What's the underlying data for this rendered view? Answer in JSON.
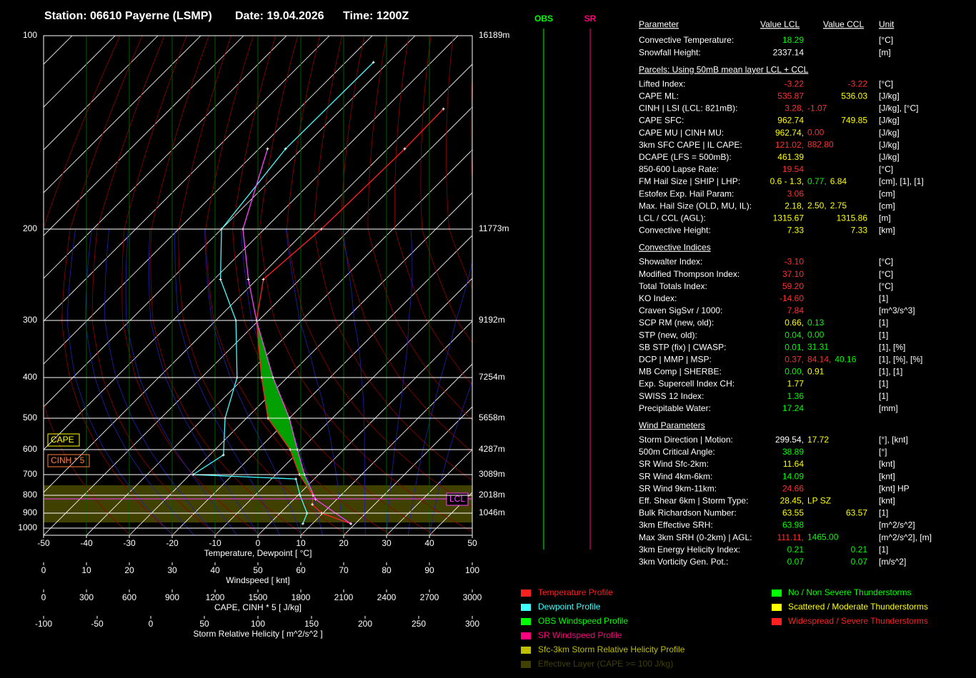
{
  "header": {
    "station": "Station: 06610 Payerne (LSMP)",
    "date": "Date: 19.04.2026",
    "time": "Time: 1200Z"
  },
  "chart_data": {
    "type": "skewt",
    "yticks": [
      100,
      200,
      300,
      400,
      500,
      600,
      700,
      800,
      900,
      1000
    ],
    "height_labels": [
      "16189m",
      "11773m",
      "9192m",
      "7254m",
      "5658m",
      "4287m",
      "3089m",
      "2018m",
      "1046m"
    ],
    "xlim": [
      -50,
      50
    ],
    "xticks": [
      -50,
      -40,
      -30,
      -20,
      -10,
      0,
      10,
      20,
      30,
      40,
      50
    ],
    "xlabel": "Temperature, Dewpoint [ °C]",
    "scales": [
      {
        "label": "Windspeed [ knt]",
        "xlim": [
          0,
          100
        ],
        "ticks": [
          0,
          10,
          20,
          30,
          40,
          50,
          60,
          70,
          80,
          90,
          100
        ]
      },
      {
        "label": "CAPE, CINH * 5 [ J/kg]",
        "xlim": [
          0,
          3000
        ],
        "ticks": [
          0,
          300,
          600,
          900,
          1200,
          1500,
          1800,
          2100,
          2400,
          2700,
          3000
        ]
      },
      {
        "label": "Storm Relative Helicity [ m^2/s^2 ]",
        "xlim": [
          -100,
          300
        ],
        "ticks": [
          -100,
          -50,
          0,
          50,
          100,
          150,
          200,
          250,
          300
        ]
      }
    ],
    "series": [
      {
        "name": "Temperature Profile",
        "color": "#ff2020",
        "pressure": [
          970,
          900,
          850,
          800,
          700,
          600,
          500,
          400,
          300,
          250,
          200,
          150,
          130
        ],
        "values": [
          19,
          9.7,
          5.5,
          3.5,
          -4.5,
          -12.5,
          -25,
          -36,
          -50.5,
          -58.5,
          -56.7,
          -56,
          -56.3
        ]
      },
      {
        "name": "Dewpoint Profile",
        "color": "#40ffff",
        "pressure": [
          970,
          900,
          800,
          720,
          700,
          620,
          500,
          400,
          300,
          250,
          200,
          150,
          110
        ],
        "values": [
          7.8,
          6.3,
          0.5,
          -4.3,
          -29.3,
          -26.8,
          -35,
          -41.7,
          -55.3,
          -68.5,
          -80,
          -83.8,
          -83.5
        ]
      },
      {
        "color": "#ff40ff",
        "pressure": [
          970,
          821,
          700,
          600,
          500,
          400,
          300,
          250,
          200,
          150
        ],
        "values": [
          19,
          5,
          -3.3,
          -10.8,
          -20,
          -33.3,
          -50.5,
          -62,
          -75,
          -88
        ]
      }
    ],
    "annotations": {
      "cape": "CAPE",
      "cinh": "CINH * 5",
      "lcl": "LCL"
    },
    "wind_columns": [
      {
        "label": "OBS",
        "color": "#00ff00"
      },
      {
        "label": "SR",
        "color": "#ff0080"
      }
    ]
  },
  "table": {
    "header": [
      "Parameter",
      "Value LCL",
      "Value CCL",
      "Unit"
    ],
    "sections": [
      {
        "rows": [
          {
            "label": "Convective Temperature:",
            "lcl": [
              {
                "text": "18.29",
                "color": "#00ff00"
              }
            ],
            "unit": "[°C]"
          },
          {
            "label": "Snowfall Height:",
            "lcl": [
              {
                "text": "2337.14",
                "color": "#ffffff"
              }
            ],
            "unit": "[m]"
          }
        ]
      },
      {
        "title": "Parcels: Using 50mB mean layer LCL + CCL",
        "rows": [
          {
            "label": "Lifted Index:",
            "lcl": [
              {
                "text": "-3.22",
                "color": "#ff3030"
              }
            ],
            "ccl": [
              {
                "text": "-3.22",
                "color": "#ff3030"
              }
            ],
            "unit": "[°C]"
          },
          {
            "label": "CAPE ML:",
            "lcl": [
              {
                "text": "535.87",
                "color": "#ff3030"
              }
            ],
            "ccl": [
              {
                "text": "536.03",
                "color": "#ffff00"
              }
            ],
            "unit": "[J/kg]"
          },
          {
            "label": "CINH | LSI (LCL: 821mB):",
            "lcl": [
              {
                "text": "3.28,",
                "color": "#ff3030"
              },
              {
                "text": "-1.07",
                "color": "#ff3030"
              }
            ],
            "unit": "[J/kg], [°C]"
          },
          {
            "label": "CAPE SFC:",
            "lcl": [
              {
                "text": "962.74",
                "color": "#ffff00"
              }
            ],
            "ccl": [
              {
                "text": "749.85",
                "color": "#ffff00"
              }
            ],
            "unit": "[J/kg]"
          },
          {
            "label": "CAPE MU | CINH MU:",
            "lcl": [
              {
                "text": "962.74,",
                "color": "#ffff00"
              },
              {
                "text": "0.00",
                "color": "#ff3030"
              }
            ],
            "unit": "[J/kg]"
          },
          {
            "label": "3km SFC CAPE | IL CAPE:",
            "lcl": [
              {
                "text": "121.02,",
                "color": "#ff3030"
              },
              {
                "text": "882.80",
                "color": "#ff3030"
              }
            ],
            "unit": "[J/kg]"
          },
          {
            "label": "DCAPE (LFS = 500mB):",
            "lcl": [
              {
                "text": "461.39",
                "color": "#ffff00"
              }
            ],
            "unit": "[J/kg]"
          },
          {
            "label": "850-600 Lapse Rate:",
            "lcl": [
              {
                "text": "19.54",
                "color": "#ff3030"
              }
            ],
            "unit": "[°C]"
          },
          {
            "label": "FM Hail Size | SHIP | LHP:",
            "lcl": [
              {
                "text": "0.6 - 1.3,",
                "color": "#ffff00"
              },
              {
                "text": "0.77,",
                "color": "#00ff00"
              },
              {
                "text": "6.84",
                "color": "#ffff00"
              }
            ],
            "unit": "[cm], [1], [1]"
          },
          {
            "label": "Estofex Exp. Hail Param:",
            "lcl": [
              {
                "text": "3.06",
                "color": "#ff3030"
              }
            ],
            "unit": "[cm]"
          },
          {
            "label": "Max. Hail Size (OLD, MU, IL):",
            "lcl": [
              {
                "text": "2.18,",
                "color": "#ffff00"
              },
              {
                "text": "2.50,",
                "color": "#ffff00"
              },
              {
                "text": "2.75",
                "color": "#ffff00"
              }
            ],
            "unit": "[cm]"
          },
          {
            "label": "LCL / CCL (AGL):",
            "lcl": [
              {
                "text": "1315.67",
                "color": "#ffff00"
              }
            ],
            "ccl": [
              {
                "text": "1315.86",
                "color": "#ffff00"
              }
            ],
            "unit": "[m]"
          },
          {
            "label": "Convective Height:",
            "lcl": [
              {
                "text": "7.33",
                "color": "#ffff00"
              }
            ],
            "ccl": [
              {
                "text": "7.33",
                "color": "#ffff00"
              }
            ],
            "unit": "[km]"
          }
        ]
      },
      {
        "title": "Convective Indices",
        "rows": [
          {
            "label": "Showalter Index:",
            "lcl": [
              {
                "text": "-3.10",
                "color": "#ff3030"
              }
            ],
            "unit": "[°C]"
          },
          {
            "label": "Modified Thompson Index:",
            "lcl": [
              {
                "text": "37.10",
                "color": "#ff3030"
              }
            ],
            "unit": "[°C]"
          },
          {
            "label": "Total Totals Index:",
            "lcl": [
              {
                "text": "59.20",
                "color": "#ff3030"
              }
            ],
            "unit": "[°C]"
          },
          {
            "label": "KO Index:",
            "lcl": [
              {
                "text": "-14.60",
                "color": "#ff3030"
              }
            ],
            "unit": "[1]"
          },
          {
            "label": "Craven SigSvr / 1000:",
            "lcl": [
              {
                "text": "7.84",
                "color": "#ff3030"
              }
            ],
            "unit": "[m^3/s^3]"
          },
          {
            "label": "SCP RM (new, old):",
            "lcl": [
              {
                "text": "0.66,",
                "color": "#ffff00"
              },
              {
                "text": "0.13",
                "color": "#00ff00"
              }
            ],
            "unit": "[1]"
          },
          {
            "label": "STP (new, old):",
            "lcl": [
              {
                "text": "0.04,",
                "color": "#00ff00"
              },
              {
                "text": "0.00",
                "color": "#00ff00"
              }
            ],
            "unit": "[1]"
          },
          {
            "label": "SB STP (fix) | CWASP:",
            "lcl": [
              {
                "text": "0.01,",
                "color": "#00ff00"
              },
              {
                "text": "31.31",
                "color": "#00ff00"
              }
            ],
            "unit": "[1], [%]"
          },
          {
            "label": "DCP | MMP | MSP:",
            "lcl": [
              {
                "text": "0.37,",
                "color": "#ff3030"
              },
              {
                "text": "84.14,",
                "color": "#ff3030"
              },
              {
                "text": "40.16",
                "color": "#00ff00"
              }
            ],
            "unit": "[1], [%], [%]"
          },
          {
            "label": "MB Comp | SHERBE:",
            "lcl": [
              {
                "text": "0.00,",
                "color": "#00ff00"
              },
              {
                "text": "0.91",
                "color": "#ffff00"
              }
            ],
            "unit": "[1], [1]"
          },
          {
            "label": "Exp. Supercell Index CH:",
            "lcl": [
              {
                "text": "1.77",
                "color": "#ffff00"
              }
            ],
            "unit": "[1]"
          },
          {
            "label": "SWISS 12 Index:",
            "lcl": [
              {
                "text": "1.36",
                "color": "#00ff00"
              }
            ],
            "unit": "[1]"
          },
          {
            "label": "Precipitable Water:",
            "lcl": [
              {
                "text": "17.24",
                "color": "#00ff00"
              }
            ],
            "unit": "[mm]"
          }
        ]
      },
      {
        "title": "Wind Parameters",
        "rows": [
          {
            "label": "Storm Direction | Motion:",
            "lcl": [
              {
                "text": "299.54,",
                "color": "#ffffff"
              },
              {
                "text": "17.72",
                "color": "#ffff00"
              }
            ],
            "unit": "[°], [knt]"
          },
          {
            "label": "500m Critical Angle:",
            "lcl": [
              {
                "text": "38.89",
                "color": "#00ff00"
              }
            ],
            "unit": "[°]"
          },
          {
            "label": "SR Wind Sfc-2km:",
            "lcl": [
              {
                "text": "11.64",
                "color": "#ffff00"
              }
            ],
            "unit": "[knt]"
          },
          {
            "label": "SR Wind 4km-6km:",
            "lcl": [
              {
                "text": "14.09",
                "color": "#00ff00"
              }
            ],
            "unit": "[knt]"
          },
          {
            "label": "SR Wind 9km-11km:",
            "lcl": [
              {
                "text": "24.66",
                "color": "#ff3030"
              }
            ],
            "unit": "[knt] HP"
          },
          {
            "label": "Eff. Shear 6km | Storm Type:",
            "lcl": [
              {
                "text": "28.45,",
                "color": "#ffff00"
              },
              {
                "text": "LP SZ",
                "color": "#ffff00"
              }
            ],
            "unit": "[knt]"
          },
          {
            "label": "Bulk Richardson Number:",
            "lcl": [
              {
                "text": "63.55",
                "color": "#ffff00"
              }
            ],
            "ccl": [
              {
                "text": "63.57",
                "color": "#ffff00"
              }
            ],
            "unit": "[1]"
          },
          {
            "label": "3km Effective SRH:",
            "lcl": [
              {
                "text": "63.98",
                "color": "#00ff00"
              }
            ],
            "unit": "[m^2/s^2]"
          },
          {
            "label": "Max 3km SRH (0-2km) | AGL:",
            "lcl": [
              {
                "text": "111.11,",
                "color": "#ff3030"
              },
              {
                "text": "1465.00",
                "color": "#00ff00"
              }
            ],
            "unit": "[m^2/s^2], [m]"
          },
          {
            "label": "3km Energy Helicity Index:",
            "lcl": [
              {
                "text": "0.21",
                "color": "#00ff00"
              }
            ],
            "ccl": [
              {
                "text": "0.21",
                "color": "#00ff00"
              }
            ],
            "unit": "[1]"
          },
          {
            "label": "3km Vorticity Gen. Pot.:",
            "lcl": [
              {
                "text": "0.07",
                "color": "#00ff00"
              }
            ],
            "ccl": [
              {
                "text": "0.07",
                "color": "#00ff00"
              }
            ],
            "unit": "[m/s^2]"
          }
        ]
      }
    ]
  },
  "legend": [
    {
      "label": "Temperature Profile",
      "color": "#ff2020"
    },
    {
      "label": "Dewpoint Profile",
      "color": "#40ffff"
    },
    {
      "label": "OBS Windspeed Profile",
      "color": "#00ff00"
    },
    {
      "label": "SR Windspeed Profile",
      "color": "#ff0080"
    },
    {
      "label": "Sfc-3km Storm Relative Helicity Profile",
      "color": "#c0c000"
    },
    {
      "label": "Effective Layer (CAPE >= 100 J/kg)",
      "color": "#404000"
    }
  ],
  "severity_legend": [
    {
      "label": "No / Non Severe Thunderstorms",
      "color": "#00ff00"
    },
    {
      "label": "Scattered / Moderate Thunderstorms",
      "color": "#ffff00"
    },
    {
      "label": "Widespread / Severe Thunderstorms",
      "color": "#ff2020"
    }
  ]
}
